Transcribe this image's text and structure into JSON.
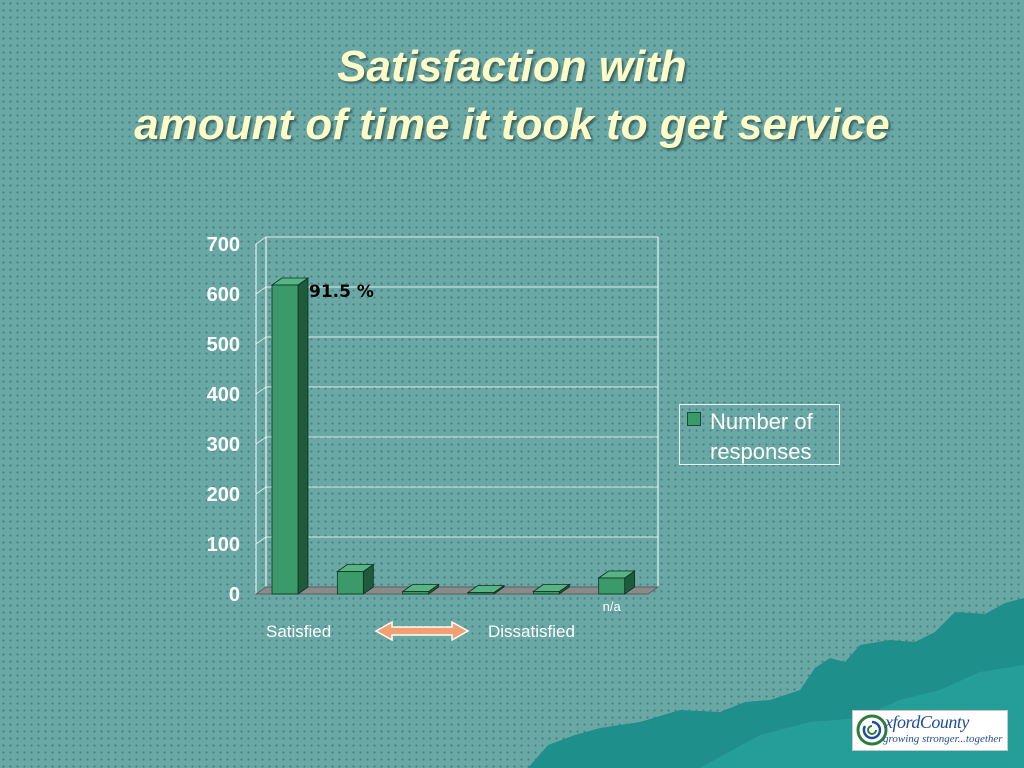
{
  "slide": {
    "title_line1": "Satisfaction with",
    "title_line2": "amount of time it took to get service",
    "footer_left": "Satisfied",
    "footer_right": "Dissatisfied"
  },
  "logo": {
    "name": "xfordCounty",
    "tagline": "growing stronger...together"
  },
  "colors": {
    "background": "#6aa8a6",
    "title": "#fdfbc8",
    "bar_face": "#3b9a6a",
    "arrow": "#f2a06f"
  },
  "chart_data": {
    "type": "bar",
    "three_d": true,
    "categories": [
      "",
      "",
      "",
      "",
      "",
      "n/a"
    ],
    "series": [
      {
        "name": "Number of responses",
        "values": [
          618,
          45,
          5,
          3,
          5,
          32
        ]
      }
    ],
    "data_labels": [
      {
        "index": 0,
        "text": "91.5 %"
      }
    ],
    "yticks": [
      "0",
      "100",
      "200",
      "300",
      "400",
      "500",
      "600",
      "700"
    ],
    "ylim": [
      0,
      700
    ],
    "grid": true,
    "legend": "right"
  }
}
